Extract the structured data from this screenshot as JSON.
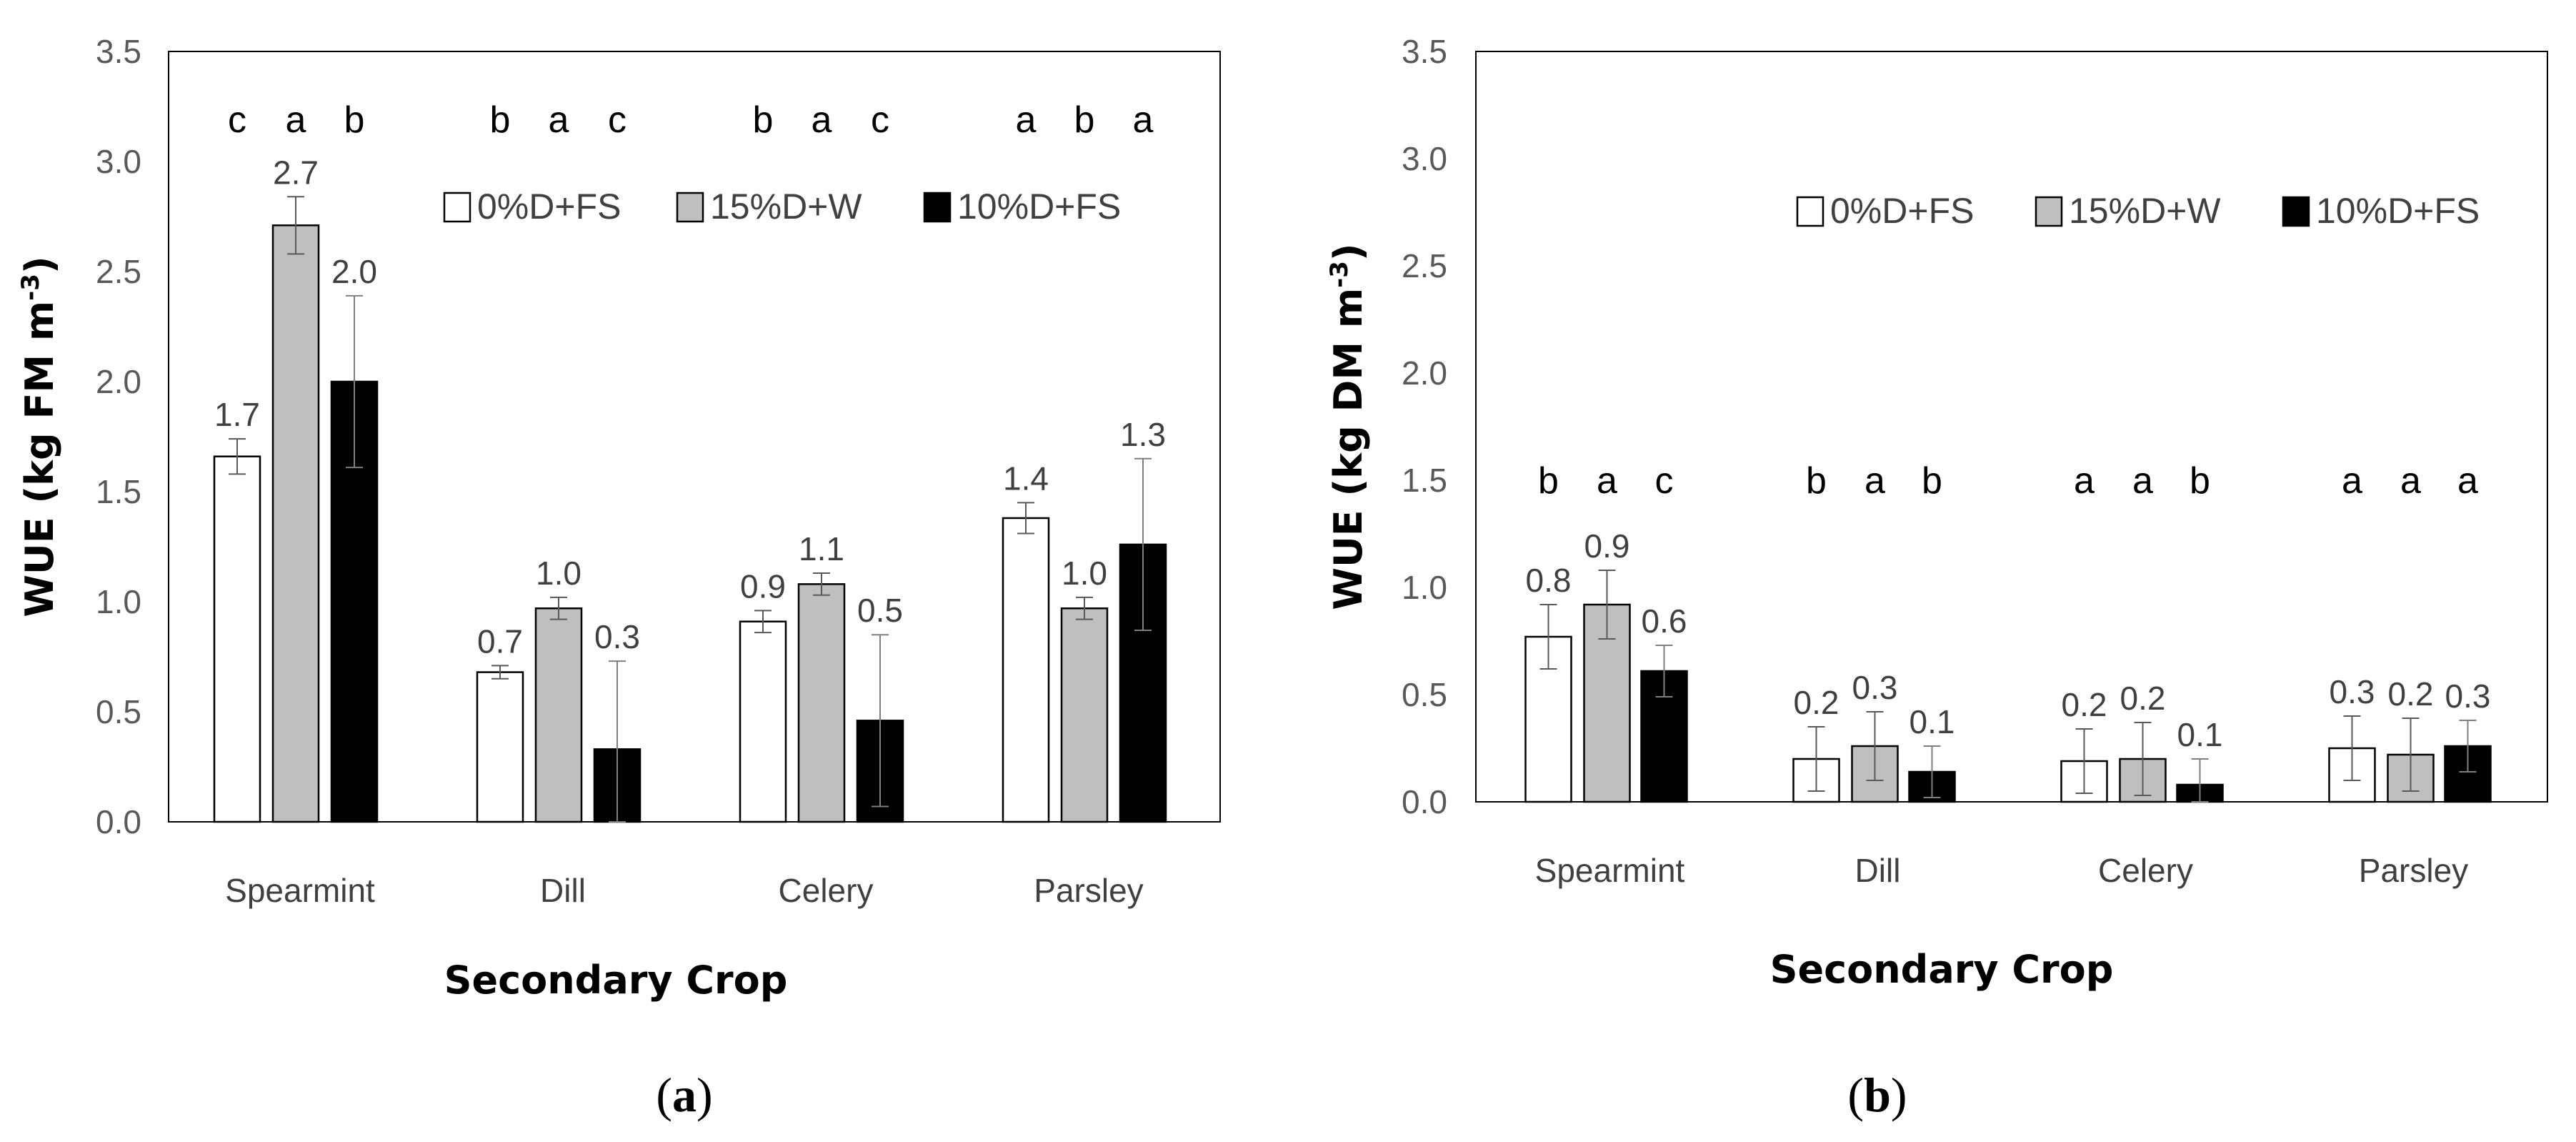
{
  "chart_data": [
    {
      "type": "bar",
      "panel_label": "a",
      "categories": [
        "Spearmint",
        "Dill",
        "Celery",
        "Parsley"
      ],
      "xlabel": "Secondary Crop",
      "ylabel": "WUE (kg FM m",
      "ylabel_sup": "-3",
      "ylim": [
        0,
        3.5
      ],
      "yticks": [
        "0.0",
        "0.5",
        "1.0",
        "1.5",
        "2.0",
        "2.5",
        "3.0",
        "3.5"
      ],
      "grid": false,
      "legend_position": "top-center",
      "series": [
        {
          "name": "0%D+FS",
          "color": "#ffffff",
          "values": [
            1.66,
            0.68,
            0.91,
            1.38
          ],
          "errors": [
            0.08,
            0.03,
            0.05,
            0.07
          ],
          "labels": [
            "1.7",
            "0.7",
            "0.9",
            "1.4"
          ]
        },
        {
          "name": "15%D+W",
          "color": "#bfbfbf",
          "values": [
            2.71,
            0.97,
            1.08,
            0.97
          ],
          "errors": [
            0.13,
            0.05,
            0.05,
            0.05
          ],
          "labels": [
            "2.7",
            "1.0",
            "1.1",
            "1.0"
          ]
        },
        {
          "name": "10%D+FS",
          "color": "#000000",
          "values": [
            2.0,
            0.33,
            0.46,
            1.26
          ],
          "errors": [
            0.39,
            0.4,
            0.39,
            0.39
          ],
          "labels": [
            "2.0",
            "0.3",
            "0.5",
            "1.3"
          ]
        }
      ],
      "significance": [
        [
          "c",
          "a",
          "b"
        ],
        [
          "b",
          "a",
          "c"
        ],
        [
          "b",
          "a",
          "c"
        ],
        [
          "a",
          "b",
          "a"
        ]
      ]
    },
    {
      "type": "bar",
      "panel_label": "b",
      "categories": [
        "Spearmint",
        "Dill",
        "Celery",
        "Parsley"
      ],
      "xlabel": "Secondary Crop",
      "ylabel": "WUE (kg DM m",
      "ylabel_sup": "-3",
      "ylim": [
        0,
        3.5
      ],
      "yticks": [
        "0.0",
        "0.5",
        "1.0",
        "1.5",
        "2.0",
        "2.5",
        "3.0",
        "3.5"
      ],
      "grid": false,
      "legend_position": "top-center",
      "series": [
        {
          "name": "0%D+FS",
          "color": "#ffffff",
          "values": [
            0.77,
            0.2,
            0.19,
            0.25
          ],
          "errors": [
            0.15,
            0.15,
            0.15,
            0.15
          ],
          "labels": [
            "0.8",
            "0.2",
            "0.2",
            "0.3"
          ]
        },
        {
          "name": "15%D+W",
          "color": "#bfbfbf",
          "values": [
            0.92,
            0.26,
            0.2,
            0.22
          ],
          "errors": [
            0.16,
            0.16,
            0.17,
            0.17
          ],
          "labels": [
            "0.9",
            "0.3",
            "0.2",
            "0.2"
          ]
        },
        {
          "name": "10%D+FS",
          "color": "#000000",
          "values": [
            0.61,
            0.14,
            0.08,
            0.26
          ],
          "errors": [
            0.12,
            0.12,
            0.12,
            0.12
          ],
          "labels": [
            "0.6",
            "0.1",
            "0.1",
            "0.3"
          ]
        }
      ],
      "significance": [
        [
          "b",
          "a",
          "c"
        ],
        [
          "b",
          "a",
          "b"
        ],
        [
          "a",
          "a",
          "b"
        ],
        [
          "a",
          "a",
          "a"
        ]
      ]
    }
  ]
}
